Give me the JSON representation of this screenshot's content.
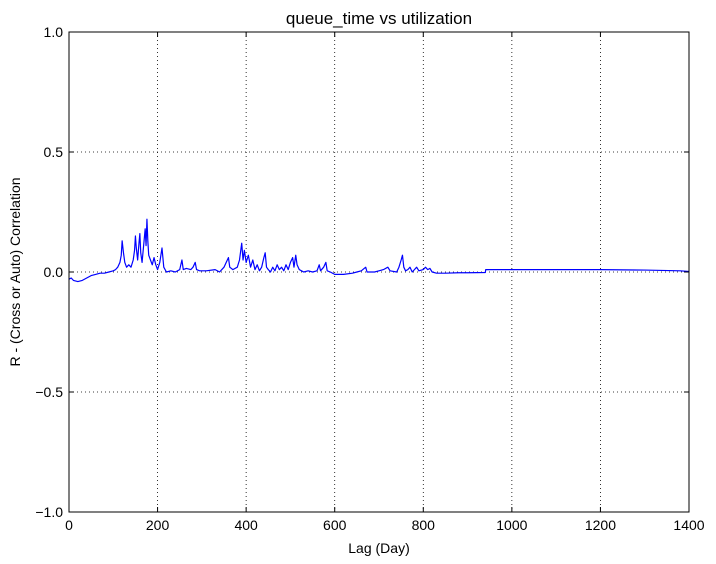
{
  "chart_data": {
    "type": "line",
    "title": "queue_time vs utilization",
    "xlabel": "Lag (Day)",
    "ylabel": "R - (Cross or Auto) Correlation",
    "xlim": [
      0,
      1400
    ],
    "ylim": [
      -1.0,
      1.0
    ],
    "xticks": [
      0,
      200,
      400,
      600,
      800,
      1000,
      1200,
      1400
    ],
    "xtick_labels": [
      "0",
      "200",
      "400",
      "600",
      "800",
      "1000",
      "1200",
      "1400"
    ],
    "yticks": [
      -1.0,
      -0.5,
      0.0,
      0.5,
      1.0
    ],
    "ytick_labels": [
      "−1.0",
      "−0.5",
      "0.0",
      "0.5",
      "1.0"
    ],
    "grid": true,
    "grid_style": "dotted",
    "legend": "none",
    "series": [
      {
        "color": "#0000ff",
        "points": [
          [
            0,
            -0.03
          ],
          [
            5,
            -0.025
          ],
          [
            10,
            -0.035
          ],
          [
            20,
            -0.04
          ],
          [
            30,
            -0.035
          ],
          [
            40,
            -0.025
          ],
          [
            50,
            -0.015
          ],
          [
            60,
            -0.01
          ],
          [
            70,
            -0.005
          ],
          [
            80,
            -0.005
          ],
          [
            90,
            0.0
          ],
          [
            100,
            0.005
          ],
          [
            105,
            0.01
          ],
          [
            110,
            0.02
          ],
          [
            115,
            0.04
          ],
          [
            118,
            0.07
          ],
          [
            120,
            0.13
          ],
          [
            123,
            0.08
          ],
          [
            126,
            0.04
          ],
          [
            130,
            0.02
          ],
          [
            135,
            0.03
          ],
          [
            140,
            0.02
          ],
          [
            145,
            0.05
          ],
          [
            148,
            0.09
          ],
          [
            150,
            0.15
          ],
          [
            152,
            0.1
          ],
          [
            155,
            0.05
          ],
          [
            158,
            0.12
          ],
          [
            160,
            0.16
          ],
          [
            162,
            0.08
          ],
          [
            165,
            0.04
          ],
          [
            168,
            0.1
          ],
          [
            170,
            0.14
          ],
          [
            172,
            0.18
          ],
          [
            174,
            0.11
          ],
          [
            176,
            0.22
          ],
          [
            178,
            0.13
          ],
          [
            180,
            0.07
          ],
          [
            184,
            0.05
          ],
          [
            188,
            0.03
          ],
          [
            192,
            0.06
          ],
          [
            196,
            0.03
          ],
          [
            200,
            0.01
          ],
          [
            205,
            0.04
          ],
          [
            210,
            0.1
          ],
          [
            214,
            0.02
          ],
          [
            220,
            0.0
          ],
          [
            230,
            0.005
          ],
          [
            240,
            0.0
          ],
          [
            250,
            0.01
          ],
          [
            255,
            0.05
          ],
          [
            258,
            0.01
          ],
          [
            265,
            0.015
          ],
          [
            275,
            0.01
          ],
          [
            280,
            0.02
          ],
          [
            285,
            0.04
          ],
          [
            288,
            0.01
          ],
          [
            295,
            0.005
          ],
          [
            310,
            0.005
          ],
          [
            330,
            0.01
          ],
          [
            340,
            0.0
          ],
          [
            350,
            0.02
          ],
          [
            355,
            0.04
          ],
          [
            360,
            0.06
          ],
          [
            363,
            0.02
          ],
          [
            370,
            0.01
          ],
          [
            380,
            0.02
          ],
          [
            385,
            0.05
          ],
          [
            390,
            0.12
          ],
          [
            393,
            0.05
          ],
          [
            396,
            0.09
          ],
          [
            400,
            0.04
          ],
          [
            405,
            0.07
          ],
          [
            410,
            0.02
          ],
          [
            415,
            0.05
          ],
          [
            420,
            0.01
          ],
          [
            425,
            0.03
          ],
          [
            430,
            0.005
          ],
          [
            435,
            0.02
          ],
          [
            440,
            0.06
          ],
          [
            443,
            0.08
          ],
          [
            446,
            0.02
          ],
          [
            450,
            0.01
          ],
          [
            455,
            0.0
          ],
          [
            460,
            0.02
          ],
          [
            465,
            0.005
          ],
          [
            470,
            0.03
          ],
          [
            475,
            0.01
          ],
          [
            480,
            0.02
          ],
          [
            485,
            0.005
          ],
          [
            490,
            0.03
          ],
          [
            495,
            0.01
          ],
          [
            500,
            0.04
          ],
          [
            505,
            0.06
          ],
          [
            508,
            0.02
          ],
          [
            512,
            0.07
          ],
          [
            515,
            0.03
          ],
          [
            520,
            0.01
          ],
          [
            525,
            0.005
          ],
          [
            530,
            0.0
          ],
          [
            540,
            0.005
          ],
          [
            550,
            0.0
          ],
          [
            560,
            0.005
          ],
          [
            565,
            0.03
          ],
          [
            568,
            0.005
          ],
          [
            575,
            0.02
          ],
          [
            580,
            0.04
          ],
          [
            583,
            0.005
          ],
          [
            590,
            0.0
          ],
          [
            600,
            -0.01
          ],
          [
            620,
            -0.01
          ],
          [
            640,
            -0.005
          ],
          [
            650,
            0.0
          ],
          [
            660,
            0.005
          ],
          [
            670,
            0.02
          ],
          [
            673,
            0.0
          ],
          [
            690,
            0.0
          ],
          [
            700,
            0.005
          ],
          [
            710,
            0.01
          ],
          [
            720,
            0.02
          ],
          [
            725,
            0.005
          ],
          [
            740,
            0.0
          ],
          [
            745,
            0.02
          ],
          [
            750,
            0.05
          ],
          [
            753,
            0.07
          ],
          [
            756,
            0.02
          ],
          [
            760,
            0.005
          ],
          [
            765,
            0.01
          ],
          [
            770,
            0.02
          ],
          [
            775,
            0.0
          ],
          [
            780,
            0.01
          ],
          [
            785,
            0.02
          ],
          [
            790,
            0.005
          ],
          [
            800,
            0.01
          ],
          [
            805,
            0.02
          ],
          [
            810,
            0.01
          ],
          [
            815,
            0.015
          ],
          [
            820,
            0.0
          ],
          [
            830,
            -0.005
          ],
          [
            850,
            -0.005
          ],
          [
            880,
            -0.003
          ],
          [
            900,
            -0.003
          ],
          [
            940,
            -0.002
          ],
          [
            941,
            0.01
          ],
          [
            960,
            0.01
          ],
          [
            1000,
            0.01
          ],
          [
            1100,
            0.01
          ],
          [
            1200,
            0.01
          ],
          [
            1300,
            0.008
          ],
          [
            1380,
            0.005
          ],
          [
            1400,
            0.002
          ]
        ]
      }
    ]
  }
}
